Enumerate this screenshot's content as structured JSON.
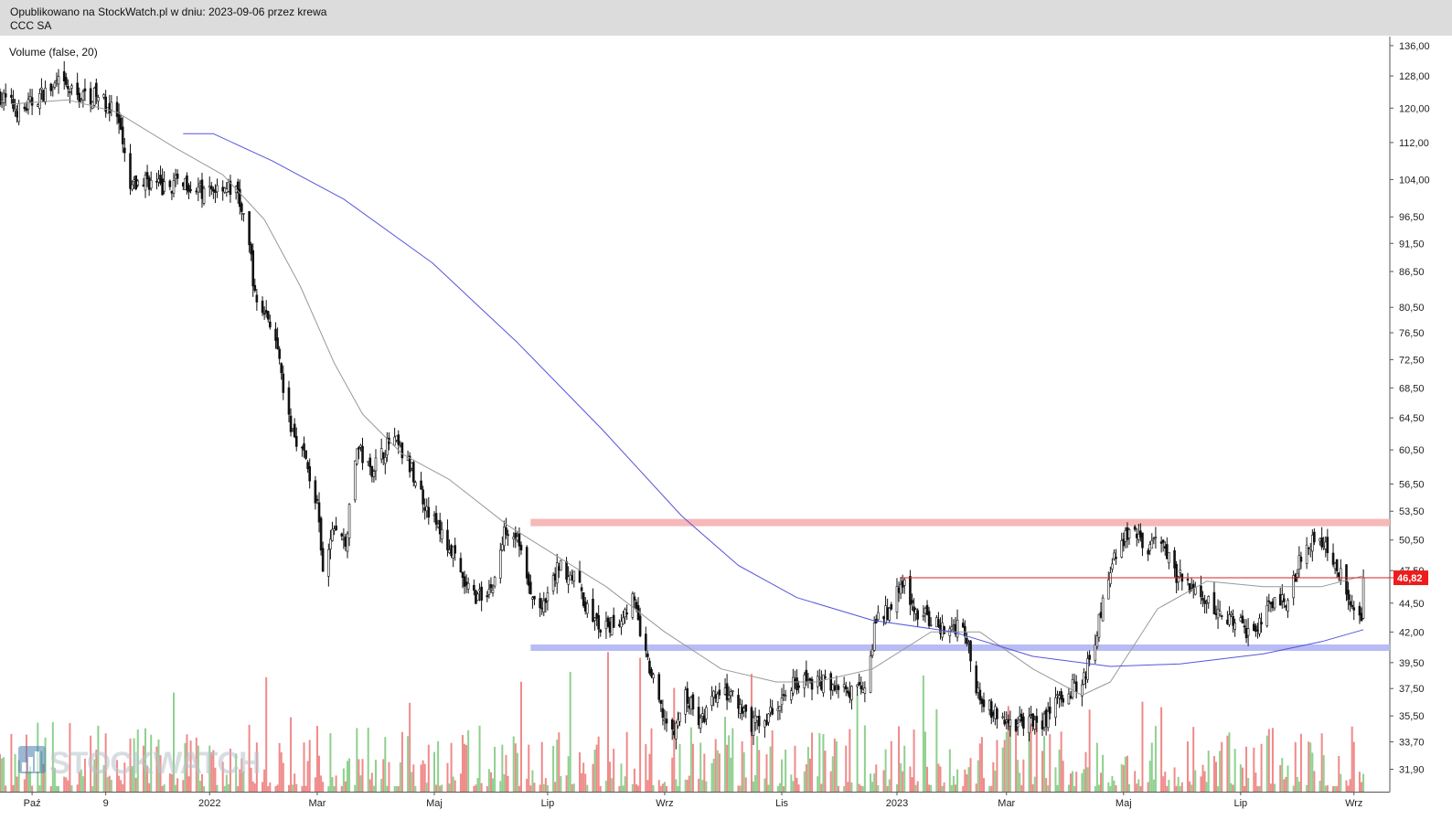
{
  "header": {
    "published_line": "Opublikowano na StockWatch.pl w dniu: 2023-09-06 przez krewa",
    "ticker": "CCC SA"
  },
  "indicator_label": "Volume (false, 20)",
  "watermark": {
    "text": "STOCKWATCH",
    "icon": "bar-chart-icon"
  },
  "colors": {
    "up_volume": "#8fd08f",
    "down_volume": "#f08a8a",
    "sma_short": "#999999",
    "sma_long": "#5555dd",
    "resistance_band": "#f6b8b8",
    "support_band": "#b8bcf4",
    "level_line": "#dd2222",
    "price_badge": "#ee1c1c"
  },
  "chart_data": {
    "type": "candlestick",
    "instrument": "CCC SA",
    "y_scale": "log",
    "ylim": [
      30.5,
      138.5
    ],
    "y_ticks": [
      "136,00",
      "128,00",
      "120,00",
      "112,00",
      "104,00",
      "96,50",
      "91,50",
      "86,50",
      "80,50",
      "76,50",
      "72,50",
      "68,50",
      "64,50",
      "60,50",
      "56,50",
      "53,50",
      "50,50",
      "47,50",
      "44,50",
      "42,00",
      "39,50",
      "37,50",
      "35,50",
      "33,70",
      "31,90"
    ],
    "x_range": [
      "2021-09-14",
      "2023-09-20"
    ],
    "x_ticks": [
      {
        "date": "2021-10-01",
        "label": "Paź"
      },
      {
        "date": "2021-11-09",
        "label": "9"
      },
      {
        "date": "2022-01-03",
        "label": "2022"
      },
      {
        "date": "2022-03-01",
        "label": "Mar"
      },
      {
        "date": "2022-05-02",
        "label": "Maj"
      },
      {
        "date": "2022-07-01",
        "label": "Lip"
      },
      {
        "date": "2022-09-01",
        "label": "Wrz"
      },
      {
        "date": "2022-11-02",
        "label": "Lis"
      },
      {
        "date": "2023-01-02",
        "label": "2023"
      },
      {
        "date": "2023-03-01",
        "label": "Mar"
      },
      {
        "date": "2023-05-02",
        "label": "Maj"
      },
      {
        "date": "2023-07-03",
        "label": "Lip"
      },
      {
        "date": "2023-09-01",
        "label": "Wrz"
      }
    ],
    "last_price": {
      "value": 46.82,
      "label": "46,82"
    },
    "close_path": [
      [
        "2021-09-14",
        123
      ],
      [
        "2021-09-25",
        119
      ],
      [
        "2021-10-05",
        123
      ],
      [
        "2021-10-15",
        126
      ],
      [
        "2021-10-25",
        123
      ],
      [
        "2021-11-05",
        123
      ],
      [
        "2021-11-15",
        118
      ],
      [
        "2021-11-22",
        102
      ],
      [
        "2021-11-30",
        104
      ],
      [
        "2021-12-10",
        102
      ],
      [
        "2021-12-20",
        104
      ],
      [
        "2021-12-31",
        101
      ],
      [
        "2022-01-10",
        103
      ],
      [
        "2022-01-18",
        101
      ],
      [
        "2022-01-25",
        89
      ],
      [
        "2022-01-27",
        82
      ],
      [
        "2022-02-05",
        78
      ],
      [
        "2022-02-14",
        64
      ],
      [
        "2022-02-22",
        60
      ],
      [
        "2022-03-01",
        54
      ],
      [
        "2022-03-04",
        47
      ],
      [
        "2022-03-10",
        52
      ],
      [
        "2022-03-16",
        50
      ],
      [
        "2022-03-22",
        61
      ],
      [
        "2022-03-29",
        58
      ],
      [
        "2022-04-10",
        62
      ],
      [
        "2022-04-20",
        58
      ],
      [
        "2022-04-28",
        54
      ],
      [
        "2022-05-06",
        51
      ],
      [
        "2022-05-12",
        49
      ],
      [
        "2022-05-18",
        46
      ],
      [
        "2022-05-25",
        45
      ],
      [
        "2022-06-02",
        46
      ],
      [
        "2022-06-09",
        52
      ],
      [
        "2022-06-15",
        51
      ],
      [
        "2022-06-22",
        45
      ],
      [
        "2022-06-29",
        44
      ],
      [
        "2022-07-07",
        48
      ],
      [
        "2022-07-15",
        47
      ],
      [
        "2022-07-22",
        44
      ],
      [
        "2022-07-30",
        42
      ],
      [
        "2022-08-08",
        43
      ],
      [
        "2022-08-15",
        45
      ],
      [
        "2022-08-22",
        40
      ],
      [
        "2022-08-30",
        36
      ],
      [
        "2022-09-05",
        34
      ],
      [
        "2022-09-12",
        37
      ],
      [
        "2022-09-20",
        35
      ],
      [
        "2022-09-28",
        37
      ],
      [
        "2022-10-06",
        37
      ],
      [
        "2022-10-15",
        35
      ],
      [
        "2022-10-22",
        35
      ],
      [
        "2022-10-30",
        36
      ],
      [
        "2022-11-08",
        38
      ],
      [
        "2022-11-18",
        38
      ],
      [
        "2022-11-28",
        38
      ],
      [
        "2022-12-08",
        37
      ],
      [
        "2022-12-16",
        38
      ],
      [
        "2022-12-22",
        43
      ],
      [
        "2022-12-31",
        44
      ],
      [
        "2023-01-04",
        47
      ],
      [
        "2023-01-10",
        44
      ],
      [
        "2023-01-20",
        43
      ],
      [
        "2023-01-28",
        42
      ],
      [
        "2023-02-06",
        43
      ],
      [
        "2023-02-12",
        38
      ],
      [
        "2023-02-20",
        36
      ],
      [
        "2023-03-01",
        35
      ],
      [
        "2023-03-10",
        35
      ],
      [
        "2023-03-20",
        35
      ],
      [
        "2023-03-30",
        37
      ],
      [
        "2023-04-10",
        38
      ],
      [
        "2023-04-18",
        42
      ],
      [
        "2023-04-24",
        47
      ],
      [
        "2023-04-30",
        50
      ],
      [
        "2023-05-06",
        52
      ],
      [
        "2023-05-14",
        49
      ],
      [
        "2023-05-22",
        51
      ],
      [
        "2023-05-30",
        47
      ],
      [
        "2023-06-08",
        46
      ],
      [
        "2023-06-18",
        44
      ],
      [
        "2023-06-28",
        43
      ],
      [
        "2023-07-08",
        42
      ],
      [
        "2023-07-18",
        44
      ],
      [
        "2023-07-28",
        45
      ],
      [
        "2023-08-06",
        50
      ],
      [
        "2023-08-12",
        51
      ],
      [
        "2023-08-20",
        49
      ],
      [
        "2023-08-28",
        46
      ],
      [
        "2023-09-01",
        44
      ],
      [
        "2023-09-05",
        43
      ],
      [
        "2023-09-06",
        46.82
      ]
    ],
    "sma_short": [
      [
        "2021-09-20",
        121
      ],
      [
        "2021-10-20",
        122
      ],
      [
        "2021-11-15",
        119
      ],
      [
        "2021-12-15",
        111
      ],
      [
        "2022-01-10",
        105
      ],
      [
        "2022-02-01",
        96
      ],
      [
        "2022-02-20",
        84
      ],
      [
        "2022-03-10",
        72
      ],
      [
        "2022-03-25",
        65
      ],
      [
        "2022-04-15",
        60
      ],
      [
        "2022-05-10",
        57
      ],
      [
        "2022-06-10",
        52
      ],
      [
        "2022-07-05",
        49
      ],
      [
        "2022-08-01",
        46
      ],
      [
        "2022-09-01",
        42
      ],
      [
        "2022-10-01",
        39
      ],
      [
        "2022-10-30",
        38
      ],
      [
        "2022-11-20",
        38
      ],
      [
        "2022-12-20",
        39
      ],
      [
        "2023-01-20",
        42
      ],
      [
        "2023-02-15",
        42
      ],
      [
        "2023-03-15",
        39
      ],
      [
        "2023-04-10",
        37
      ],
      [
        "2023-04-25",
        38
      ],
      [
        "2023-05-20",
        44
      ],
      [
        "2023-06-15",
        46.5
      ],
      [
        "2023-07-15",
        46
      ],
      [
        "2023-08-15",
        46
      ],
      [
        "2023-09-06",
        47
      ]
    ],
    "sma_long": [
      [
        "2021-12-20",
        114
      ],
      [
        "2022-01-05",
        114
      ],
      [
        "2022-02-05",
        108
      ],
      [
        "2022-03-15",
        100
      ],
      [
        "2022-05-01",
        88
      ],
      [
        "2022-06-15",
        75
      ],
      [
        "2022-07-30",
        63
      ],
      [
        "2022-09-10",
        53
      ],
      [
        "2022-10-10",
        48
      ],
      [
        "2022-11-10",
        45
      ],
      [
        "2022-12-20",
        43
      ],
      [
        "2023-02-01",
        42
      ],
      [
        "2023-03-15",
        40
      ],
      [
        "2023-04-25",
        39.2
      ],
      [
        "2023-06-01",
        39.4
      ],
      [
        "2023-07-15",
        40.2
      ],
      [
        "2023-08-15",
        41.2
      ],
      [
        "2023-09-06",
        42.2
      ]
    ],
    "resistance_zone": {
      "y": 52.3,
      "from": "2022-06-22",
      "to": "2023-09-20"
    },
    "support_zone": {
      "y": 40.7,
      "from": "2022-06-22",
      "to": "2023-09-20"
    },
    "level_line": {
      "y": 46.82,
      "from": "2023-01-04",
      "to": "2023-09-24"
    }
  }
}
